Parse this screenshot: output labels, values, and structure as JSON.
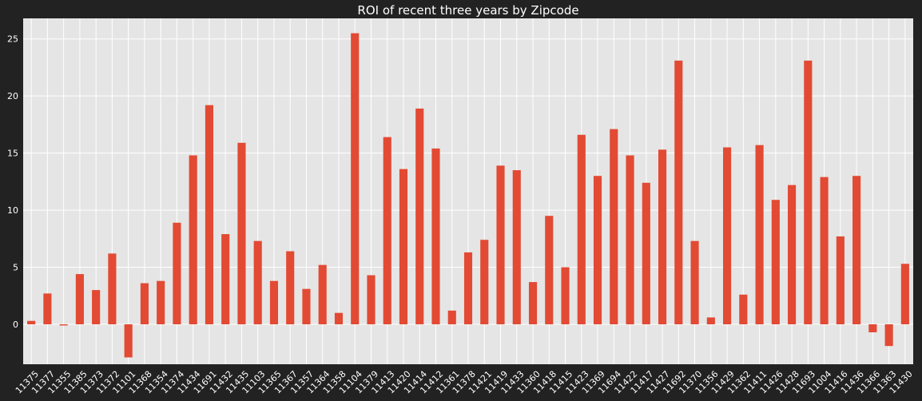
{
  "chart_data": {
    "type": "bar",
    "title": "ROI of recent three years by Zipcode",
    "xlabel": "",
    "ylabel": "",
    "ylim": [
      -3.5,
      26.8
    ],
    "yticks": [
      0,
      5,
      10,
      15,
      20,
      25
    ],
    "grid": true,
    "legend": "none",
    "colors": {
      "background": "#222222",
      "plot_area": "#e5e5e5",
      "bar": "#e24a33",
      "grid": "#ffffff",
      "text": "#ffffff"
    },
    "categories": [
      "11375",
      "11377",
      "11355",
      "11385",
      "11373",
      "11372",
      "11101",
      "11368",
      "11354",
      "11374",
      "11434",
      "11691",
      "11432",
      "11435",
      "11103",
      "11365",
      "11367",
      "11357",
      "11364",
      "11358",
      "11104",
      "11379",
      "11413",
      "11420",
      "11414",
      "11412",
      "11361",
      "11378",
      "11421",
      "11419",
      "11433",
      "11360",
      "11418",
      "11415",
      "11423",
      "11369",
      "11694",
      "11422",
      "11417",
      "11427",
      "11692",
      "11370",
      "11356",
      "11429",
      "11362",
      "11411",
      "11426",
      "11428",
      "11693",
      "11004",
      "11416",
      "11436",
      "11366",
      "11363",
      "11430"
    ],
    "values": [
      0.3,
      2.7,
      -0.1,
      4.4,
      3.0,
      6.2,
      -2.9,
      3.6,
      3.8,
      8.9,
      14.8,
      19.2,
      7.9,
      15.9,
      7.3,
      3.8,
      6.4,
      3.1,
      5.2,
      1.0,
      25.5,
      4.3,
      16.4,
      13.6,
      18.9,
      15.4,
      1.2,
      6.3,
      7.4,
      13.9,
      13.5,
      3.7,
      9.5,
      5.0,
      16.6,
      13.0,
      17.1,
      14.8,
      12.4,
      15.3,
      23.1,
      7.3,
      0.6,
      15.5,
      2.6,
      15.7,
      10.9,
      12.2,
      23.1,
      12.9,
      7.7,
      13.0,
      -0.7,
      -1.9,
      5.3
    ]
  }
}
